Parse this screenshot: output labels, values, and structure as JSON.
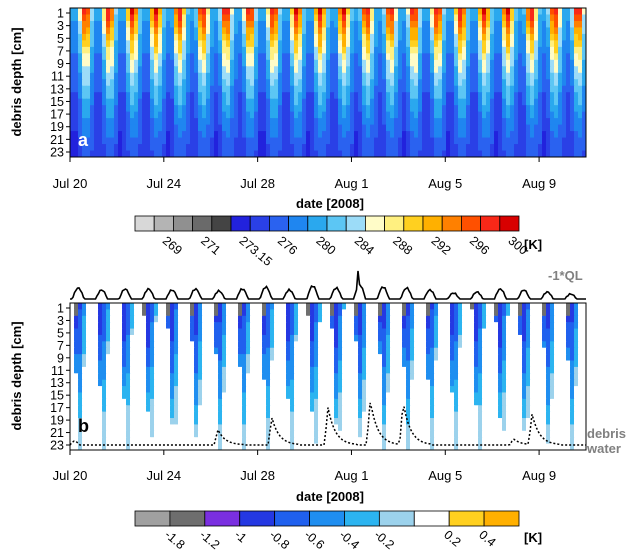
{
  "chart_data": [
    {
      "type": "heatmap",
      "panel_label": "a",
      "xlabel": "date [2008]",
      "ylabel": "debris depth [cm]",
      "x_tick_labels": [
        "Jul 20",
        "Jul 24",
        "Jul 28",
        "Aug 1",
        "Aug 5",
        "Aug 9"
      ],
      "x": [
        "2008-07-20",
        "2008-07-24",
        "2008-07-28",
        "2008-08-01",
        "2008-08-05",
        "2008-08-09"
      ],
      "xlim": [
        "2008-07-20",
        "2008-08-11"
      ],
      "y_tick_labels": [
        "1",
        "3",
        "5",
        "7",
        "9",
        "11",
        "13",
        "15",
        "17",
        "19",
        "21",
        "23"
      ],
      "y_ticks": [
        1,
        3,
        5,
        7,
        9,
        11,
        13,
        15,
        17,
        19,
        21,
        23
      ],
      "ylim": [
        23,
        1
      ],
      "colorbar": {
        "labels": [
          "269",
          "271",
          "273.15",
          "276",
          "280",
          "284",
          "288",
          "292",
          "296",
          "300"
        ],
        "unit": "[K]",
        "colors": [
          "#d8d8d8",
          "#b4b4b4",
          "#909090",
          "#6a6a6a",
          "#444444",
          "#2222dd",
          "#2a40e6",
          "#2a62f0",
          "#1f86f0",
          "#2aa8ee",
          "#5cc6f4",
          "#9cdcf8",
          "#fffcc8",
          "#fff080",
          "#ffd020",
          "#ffb000",
          "#ff8000",
          "#ff5000",
          "#f82818",
          "#d80000"
        ]
      },
      "diurnal_cycles": 22
    },
    {
      "type": "heatmap",
      "panel_label": "b",
      "xlabel": "date [2008]",
      "ylabel": "debris depth [cm]",
      "x_tick_labels": [
        "Jul 20",
        "Jul 24",
        "Jul 28",
        "Aug 1",
        "Aug 5",
        "Aug 9"
      ],
      "x": [
        "2008-07-20",
        "2008-07-24",
        "2008-07-28",
        "2008-08-01",
        "2008-08-05",
        "2008-08-09"
      ],
      "xlim": [
        "2008-07-20",
        "2008-08-11"
      ],
      "y_tick_labels": [
        "1",
        "3",
        "5",
        "7",
        "9",
        "11",
        "13",
        "15",
        "17",
        "19",
        "21",
        "23"
      ],
      "y_ticks": [
        1,
        3,
        5,
        7,
        9,
        11,
        13,
        15,
        17,
        19,
        21,
        23
      ],
      "ylim": [
        23,
        1
      ],
      "colorbar": {
        "labels": [
          "-1.8",
          "-1.2",
          "-1",
          "-0.8",
          "-0.6",
          "-0.4",
          "-0.2",
          "0.2",
          "0.4"
        ],
        "unit": "[K]",
        "colors": [
          "#a0a0a0",
          "#6e6e6e",
          "#7a2fe0",
          "#2438e2",
          "#2060ee",
          "#1f8ef0",
          "#2cb4f0",
          "#9cd2ec",
          "#ffffff",
          "#ffd020",
          "#ffb000"
        ]
      },
      "series": [
        {
          "name": "-1*QL",
          "style": "solid"
        },
        {
          "name": "debris water",
          "style": "dotted"
        }
      ],
      "events": {
        "water_peak_days": [
          6.3,
          8.6,
          11.0,
          12.8,
          14.2,
          18.9,
          19.7
        ],
        "water_peak_depths": [
          20.5,
          18.5,
          17.0,
          15.8,
          16.0,
          22.0,
          18.0
        ]
      }
    }
  ]
}
